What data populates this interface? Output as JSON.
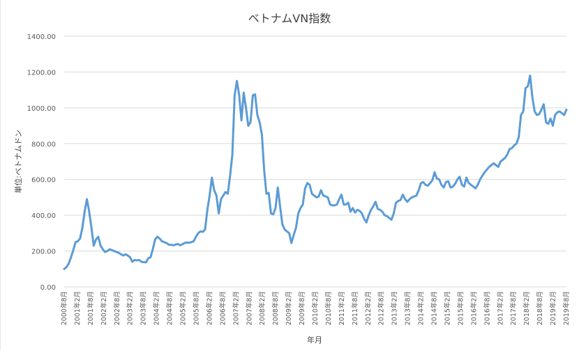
{
  "chart_data": {
    "type": "line",
    "title": "ベトナムVN指数",
    "xlabel": "年月",
    "ylabel": "単位:ベトナムドン",
    "ylim": [
      0,
      1400
    ],
    "yticks": [
      "0.00",
      "200.00",
      "400.00",
      "600.00",
      "800.00",
      "1000.00",
      "1200.00",
      "1400.00"
    ],
    "grid": true,
    "legend": "none",
    "line_color": "#5b9bd5",
    "x_tick_labels": [
      "2000年8月",
      "2001年2月",
      "2001年8月",
      "2002年2月",
      "2002年8月",
      "2003年2月",
      "2003年8月",
      "2004年2月",
      "2004年8月",
      "2005年2月",
      "2005年8月",
      "2006年2月",
      "2006年8月",
      "2007年2月",
      "2007年8月",
      "2008年2月",
      "2008年8月",
      "2009年2月",
      "2009年8月",
      "2010年2月",
      "2010年8月",
      "2011年2月",
      "2011年8月",
      "2012年2月",
      "2012年8月",
      "2013年2月",
      "2013年8月",
      "2014年2月",
      "2014年8月",
      "2015年2月",
      "2015年8月",
      "2016年2月",
      "2016年8月",
      "2017年2月",
      "2017年8月",
      "2018年2月",
      "2018年8月",
      "2019年2月",
      "2019年8月"
    ],
    "series": [
      {
        "values": [
          100,
          110,
          130,
          165,
          205,
          250,
          255,
          270,
          330,
          420,
          490,
          420,
          330,
          230,
          265,
          280,
          230,
          210,
          195,
          200,
          210,
          205,
          200,
          195,
          190,
          182,
          175,
          182,
          175,
          165,
          140,
          150,
          148,
          150,
          140,
          138,
          137,
          160,
          165,
          210,
          265,
          280,
          270,
          255,
          250,
          245,
          236,
          235,
          232,
          236,
          240,
          232,
          238,
          245,
          248,
          246,
          250,
          255,
          280,
          300,
          310,
          307,
          320,
          430,
          510,
          610,
          540,
          510,
          410,
          490,
          510,
          530,
          520,
          620,
          740,
          1070,
          1150,
          1070,
          930,
          1085,
          1000,
          900,
          920,
          1070,
          1075,
          960,
          920,
          850,
          650,
          520,
          525,
          410,
          405,
          440,
          555,
          450,
          350,
          320,
          310,
          300,
          245,
          290,
          330,
          410,
          440,
          460,
          550,
          580,
          570,
          520,
          510,
          500,
          505,
          540,
          510,
          505,
          500,
          460,
          455,
          455,
          460,
          490,
          515,
          460,
          460,
          470,
          420,
          440,
          415,
          430,
          425,
          410,
          380,
          360,
          400,
          430,
          450,
          475,
          435,
          430,
          420,
          400,
          395,
          385,
          375,
          410,
          470,
          480,
          485,
          515,
          490,
          475,
          490,
          500,
          505,
          510,
          540,
          580,
          585,
          570,
          565,
          580,
          595,
          640,
          605,
          600,
          570,
          555,
          585,
          590,
          555,
          560,
          575,
          600,
          615,
          570,
          560,
          610,
          580,
          570,
          560,
          550,
          570,
          600,
          620,
          640,
          655,
          670,
          680,
          690,
          680,
          670,
          700,
          710,
          720,
          740,
          770,
          775,
          790,
          800,
          835,
          960,
          980,
          1110,
          1120,
          1180,
          1060,
          980,
          960,
          965,
          990,
          1020,
          920,
          910,
          940,
          900,
          960,
          975,
          980,
          970,
          960,
          990
        ]
      }
    ]
  }
}
